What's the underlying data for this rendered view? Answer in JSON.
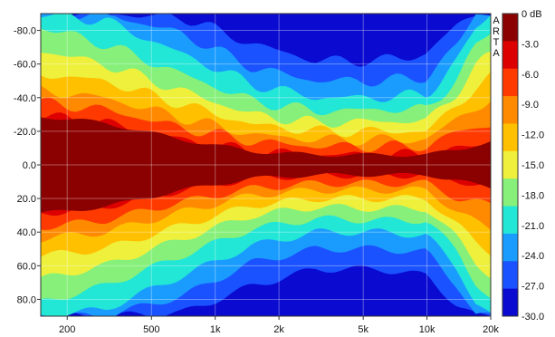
{
  "chart_data": {
    "type": "heatmap",
    "title": "",
    "xlabel": "",
    "ylabel": "",
    "x_scale": "log",
    "xlim": [
      150,
      20000
    ],
    "x_ticks": [
      200,
      500,
      1000,
      2000,
      5000,
      10000,
      20000
    ],
    "x_tick_labels": [
      "200",
      "500",
      "1k",
      "2k",
      "5k",
      "10k",
      "20k"
    ],
    "ylim": [
      90,
      -90
    ],
    "y_ticks": [
      -80,
      -60,
      -40,
      -20,
      0,
      20,
      40,
      60,
      80
    ],
    "y_tick_labels": [
      "-80.0",
      "-60.0",
      "-40.0",
      "-20.0",
      "0.0",
      "20.0",
      "40.0",
      "60.0",
      "80.0"
    ],
    "colorbar": {
      "unit": "dB",
      "range": [
        -30,
        0
      ],
      "labels": [
        "0 dB",
        "-3.0",
        "-6.0",
        "-9.0",
        "-12.0",
        "-15.0",
        "-18.0",
        "-21.0",
        "-24.0",
        "-27.0",
        "-30.0"
      ],
      "colors": [
        "#8b0000",
        "#dd0000",
        "#ff3a00",
        "#ff8a00",
        "#ffc000",
        "#eef03c",
        "#86f07a",
        "#22e6d6",
        "#1a9cff",
        "#1a52ff",
        "#0a0ad0"
      ]
    },
    "watermark": "ARTA",
    "grid": true,
    "level_at_0deg_db": 0,
    "contours_db": [
      {
        "level": -3,
        "freq_hz": [
          150,
          300,
          700,
          1500,
          3000,
          6000,
          10000,
          14000,
          17000,
          20000
        ],
        "half_angle_deg": [
          29,
          25,
          15,
          8,
          6,
          6,
          6,
          9,
          12,
          14
        ]
      },
      {
        "level": -6,
        "freq_hz": [
          150,
          300,
          700,
          1500,
          3000,
          6000,
          10000,
          14000,
          17000,
          20000
        ],
        "half_angle_deg": [
          37,
          33,
          22,
          14,
          11,
          11,
          11,
          20,
          22,
          24
        ]
      },
      {
        "level": -9,
        "freq_hz": [
          150,
          300,
          700,
          1500,
          3000,
          6000,
          10000,
          14000,
          17000,
          20000
        ],
        "half_angle_deg": [
          44,
          40,
          28,
          18,
          15,
          15,
          15,
          28,
          34,
          38
        ]
      },
      {
        "level": -12,
        "freq_hz": [
          150,
          300,
          700,
          1500,
          3000,
          6000,
          10000,
          14000,
          17000,
          20000
        ],
        "half_angle_deg": [
          54,
          50,
          36,
          24,
          20,
          20,
          20,
          36,
          46,
          52
        ]
      },
      {
        "level": -15,
        "freq_hz": [
          150,
          300,
          700,
          1500,
          3000,
          6000,
          10000,
          14000,
          17000,
          20000
        ],
        "half_angle_deg": [
          68,
          60,
          44,
          30,
          25,
          26,
          26,
          44,
          58,
          66
        ]
      },
      {
        "level": -18,
        "freq_hz": [
          150,
          300,
          700,
          1500,
          3000,
          6000,
          10000,
          14000,
          17000,
          20000
        ],
        "half_angle_deg": [
          82,
          72,
          54,
          38,
          32,
          33,
          33,
          52,
          70,
          80
        ]
      },
      {
        "level": -21,
        "freq_hz": [
          150,
          300,
          700,
          1500,
          3000,
          6000,
          10000,
          14000,
          17000,
          20000
        ],
        "half_angle_deg": [
          90,
          86,
          66,
          48,
          40,
          40,
          42,
          62,
          82,
          90
        ]
      },
      {
        "level": -24,
        "freq_hz": [
          150,
          300,
          700,
          1500,
          3000,
          6000,
          10000,
          14000,
          17000,
          20000
        ],
        "half_angle_deg": [
          90,
          90,
          78,
          58,
          50,
          50,
          52,
          72,
          90,
          90
        ]
      },
      {
        "level": -27,
        "freq_hz": [
          150,
          300,
          700,
          1500,
          3000,
          6000,
          10000,
          14000,
          17000,
          20000
        ],
        "half_angle_deg": [
          90,
          90,
          88,
          72,
          62,
          62,
          66,
          84,
          90,
          90
        ]
      }
    ]
  }
}
